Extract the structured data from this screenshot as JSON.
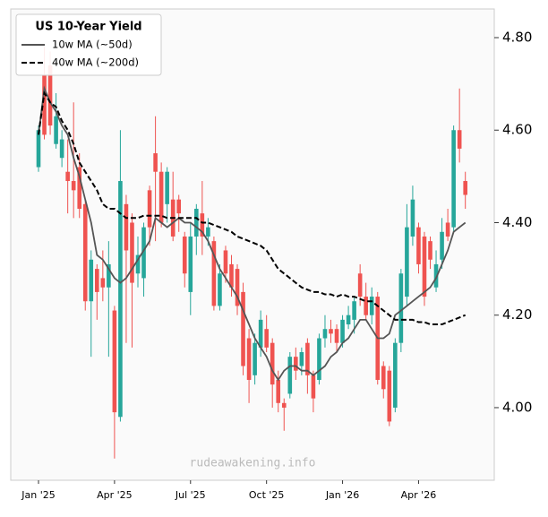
{
  "chart_data": {
    "type": "candlestick",
    "categories": [
      "Jan '25",
      null,
      null,
      null,
      null,
      null,
      null,
      null,
      null,
      null,
      null,
      null,
      null,
      "Apr '25",
      null,
      null,
      null,
      null,
      null,
      null,
      null,
      null,
      null,
      null,
      null,
      null,
      "Jul '25",
      null,
      null,
      null,
      null,
      null,
      null,
      null,
      null,
      null,
      null,
      null,
      null,
      "Oct '25",
      null,
      null,
      null,
      null,
      null,
      null,
      null,
      null,
      null,
      null,
      null,
      null,
      "Jan '26",
      null,
      null,
      null,
      null,
      null,
      null,
      null,
      null,
      null,
      null,
      null,
      null,
      "Apr '26",
      null,
      null,
      null,
      null,
      null,
      null,
      null,
      null
    ],
    "open": [
      4.52,
      4.72,
      4.74,
      4.57,
      4.54,
      4.51,
      4.49,
      4.52,
      4.44,
      4.23,
      4.3,
      4.28,
      4.26,
      4.21,
      3.98,
      4.44,
      4.4,
      4.29,
      4.28,
      4.47,
      4.55,
      4.51,
      4.44,
      4.45,
      4.45,
      4.37,
      4.25,
      4.37,
      4.42,
      4.37,
      4.36,
      4.22,
      4.34,
      4.31,
      4.3,
      4.25,
      4.15,
      4.07,
      4.13,
      4.17,
      4.14,
      4.06,
      4.01,
      4.03,
      4.11,
      4.09,
      4.14,
      4.07,
      4.06,
      4.15,
      4.17,
      4.17,
      4.14,
      4.18,
      4.19,
      4.29,
      4.24,
      4.2,
      4.24,
      4.09,
      4.08,
      4.0,
      4.14,
      4.24,
      4.37,
      4.39,
      4.37,
      4.36,
      4.26,
      4.32,
      4.4,
      4.39,
      4.6,
      4.49
    ],
    "high": [
      4.61,
      4.78,
      4.77,
      4.68,
      4.6,
      4.58,
      4.66,
      4.55,
      4.45,
      4.34,
      4.31,
      4.34,
      4.36,
      4.22,
      4.6,
      4.46,
      4.42,
      4.37,
      4.4,
      4.48,
      4.63,
      4.53,
      4.52,
      4.51,
      4.46,
      4.38,
      4.4,
      4.44,
      4.49,
      4.41,
      4.37,
      4.31,
      4.35,
      4.33,
      4.31,
      4.27,
      4.17,
      4.16,
      4.21,
      4.2,
      4.15,
      4.08,
      4.02,
      4.12,
      4.13,
      4.13,
      4.15,
      4.08,
      4.16,
      4.2,
      4.19,
      4.18,
      4.2,
      4.22,
      4.24,
      4.31,
      4.27,
      4.26,
      4.25,
      4.1,
      4.09,
      4.15,
      4.3,
      4.44,
      4.48,
      4.4,
      4.38,
      4.37,
      4.34,
      4.41,
      4.43,
      4.61,
      4.69,
      4.51
    ],
    "low": [
      4.51,
      4.58,
      4.59,
      4.56,
      4.52,
      4.42,
      4.41,
      4.41,
      4.21,
      4.11,
      4.19,
      4.23,
      4.11,
      3.89,
      3.97,
      4.14,
      4.13,
      4.26,
      4.24,
      4.35,
      4.36,
      4.39,
      4.4,
      4.36,
      4.38,
      4.26,
      4.2,
      4.33,
      4.33,
      4.35,
      4.21,
      4.21,
      4.27,
      4.24,
      4.2,
      4.07,
      4.01,
      4.05,
      4.11,
      4.12,
      4.0,
      3.99,
      3.95,
      4.02,
      4.06,
      4.07,
      4.03,
      3.99,
      4.05,
      4.13,
      4.14,
      4.12,
      4.13,
      4.17,
      4.16,
      4.22,
      4.19,
      4.18,
      4.05,
      4.02,
      3.96,
      3.99,
      4.12,
      4.22,
      4.35,
      4.29,
      4.22,
      4.3,
      4.25,
      4.3,
      4.36,
      4.38,
      4.53,
      4.43
    ],
    "close": [
      4.6,
      4.59,
      4.61,
      4.63,
      4.58,
      4.49,
      4.47,
      4.43,
      4.23,
      4.32,
      4.25,
      4.26,
      4.31,
      3.99,
      4.49,
      4.34,
      4.27,
      4.33,
      4.39,
      4.39,
      4.51,
      4.4,
      4.51,
      4.37,
      4.42,
      4.29,
      4.37,
      4.43,
      4.37,
      4.39,
      4.22,
      4.29,
      4.29,
      4.26,
      4.22,
      4.09,
      4.06,
      4.14,
      4.19,
      4.13,
      4.05,
      4.01,
      4.0,
      4.11,
      4.08,
      4.12,
      4.07,
      4.02,
      4.15,
      4.17,
      4.16,
      4.14,
      4.19,
      4.2,
      4.23,
      4.24,
      4.2,
      4.24,
      4.06,
      4.04,
      3.97,
      4.14,
      4.29,
      4.39,
      4.45,
      4.31,
      4.24,
      4.32,
      4.31,
      4.38,
      4.37,
      4.6,
      4.56,
      4.46
    ],
    "up_color": "#26a69a",
    "down_color": "#ef5350",
    "series": [
      {
        "name": "10w MA (~50d)",
        "color": "#555555",
        "dash": false,
        "values": [
          4.59,
          4.69,
          4.66,
          4.64,
          4.61,
          4.59,
          4.54,
          4.5,
          4.45,
          4.4,
          4.33,
          4.32,
          4.3,
          4.28,
          4.27,
          4.28,
          4.3,
          4.32,
          4.34,
          4.36,
          4.41,
          4.4,
          4.39,
          4.4,
          4.41,
          4.4,
          4.4,
          4.39,
          4.38,
          4.36,
          4.33,
          4.3,
          4.28,
          4.26,
          4.24,
          4.21,
          4.18,
          4.15,
          4.13,
          4.11,
          4.08,
          4.06,
          4.08,
          4.09,
          4.09,
          4.08,
          4.08,
          4.07,
          4.08,
          4.09,
          4.11,
          4.12,
          4.14,
          4.15,
          4.17,
          4.19,
          4.19,
          4.17,
          4.15,
          4.15,
          4.16,
          4.2,
          4.21,
          4.22,
          4.23,
          4.24,
          4.25,
          4.26,
          4.28,
          4.31,
          4.34,
          4.38,
          4.39,
          4.4
        ]
      },
      {
        "name": "40w MA (~200d)",
        "color": "#000000",
        "dash": true,
        "values": [
          4.59,
          4.68,
          4.66,
          4.65,
          4.62,
          4.6,
          4.57,
          4.53,
          4.51,
          4.49,
          4.47,
          4.44,
          4.43,
          4.43,
          4.42,
          4.41,
          4.41,
          4.41,
          4.415,
          4.415,
          4.415,
          4.415,
          4.41,
          4.41,
          4.41,
          4.41,
          4.41,
          4.41,
          4.4,
          4.4,
          4.395,
          4.39,
          4.385,
          4.38,
          4.37,
          4.365,
          4.36,
          4.355,
          4.35,
          4.34,
          4.32,
          4.3,
          4.29,
          4.28,
          4.27,
          4.26,
          4.255,
          4.25,
          4.25,
          4.245,
          4.245,
          4.24,
          4.245,
          4.24,
          4.24,
          4.235,
          4.23,
          4.23,
          4.22,
          4.21,
          4.2,
          4.19,
          4.19,
          4.19,
          4.19,
          4.185,
          4.185,
          4.18,
          4.18,
          4.18,
          4.185,
          4.19,
          4.195,
          4.2
        ]
      }
    ],
    "ylim": [
      3.843,
      4.862
    ],
    "yticks": [
      {
        "value": 4.0,
        "label": "4.00"
      },
      {
        "value": 4.2,
        "label": "4.20"
      },
      {
        "value": 4.4,
        "label": "4.40"
      },
      {
        "value": 4.6,
        "label": "4.60"
      },
      {
        "value": 4.8,
        "label": "4.80"
      }
    ],
    "legend_title": "US 10-Year Yield",
    "legend": "upper left",
    "watermark": "rudeawakening.info"
  }
}
